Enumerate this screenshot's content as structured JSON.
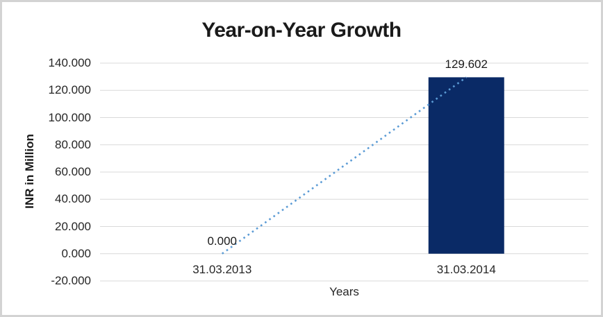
{
  "chart": {
    "title": "Year-on-Year Growth",
    "y_axis_title": "INR in Million",
    "x_axis_title": "Years"
  },
  "chart_data": {
    "type": "bar",
    "title": "Year-on-Year Growth",
    "xlabel": "Years",
    "ylabel": "INR in Million",
    "categories": [
      "31.03.2013",
      "31.03.2014"
    ],
    "series": [
      {
        "name": "INR in Million",
        "type": "bar",
        "values": [
          0.0,
          129.602
        ]
      },
      {
        "name": "Trend",
        "type": "line",
        "values": [
          0.0,
          129.602
        ]
      }
    ],
    "data_labels": [
      "0.000",
      "129.602"
    ],
    "ylim": [
      -20,
      140
    ],
    "ytick_step": 20,
    "ytick_labels": [
      "140.000",
      "120.000",
      "100.000",
      "80.000",
      "60.000",
      "40.000",
      "20.000",
      "0.000",
      "-20.000"
    ],
    "grid": true,
    "legend": false,
    "colors": {
      "bar": "#0a2a66",
      "trend_line": "#5b9bd5",
      "gridline": "#d9d9d9",
      "text": "#262626",
      "frame_border": "#d3d3d3"
    }
  }
}
